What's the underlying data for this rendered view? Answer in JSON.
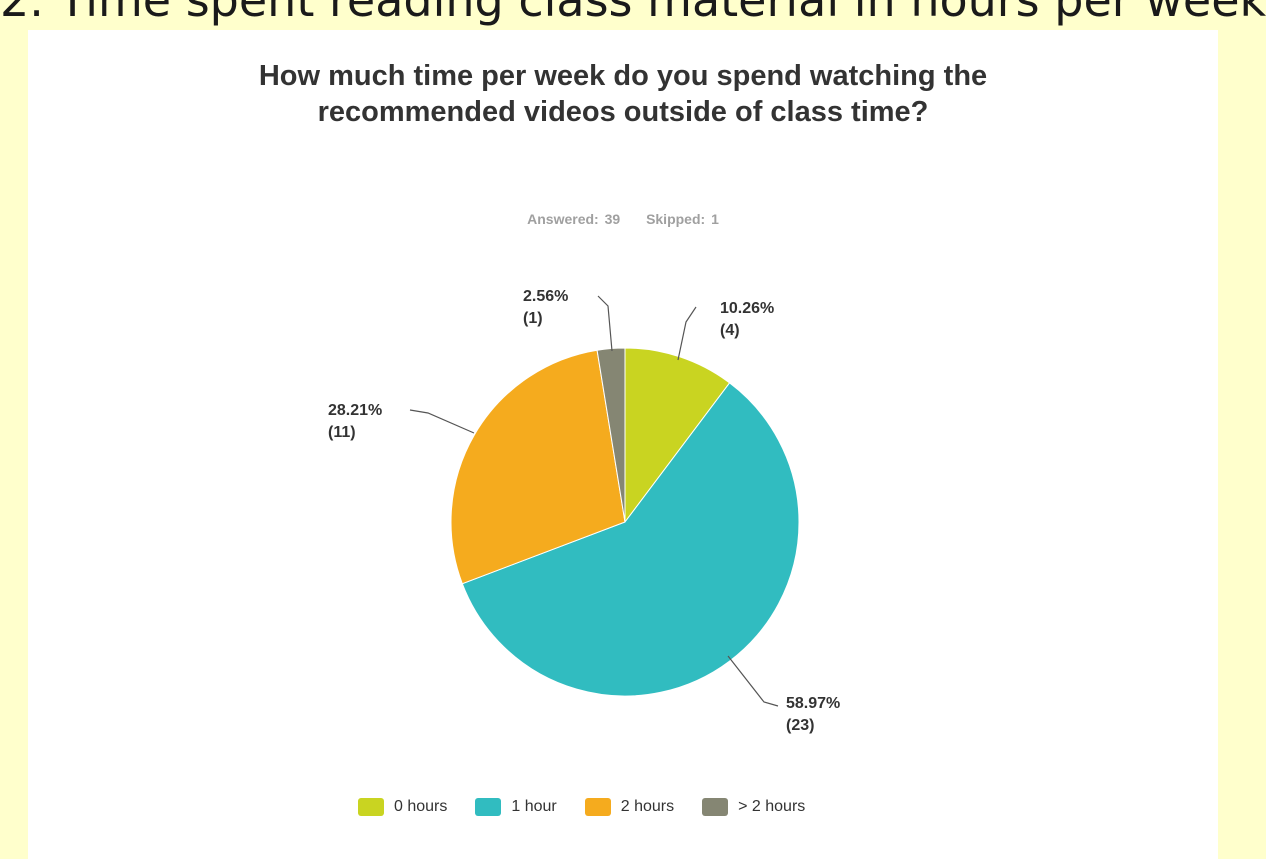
{
  "slide": {
    "heading": "2. Time spent reading class material in hours per week"
  },
  "chart_data": {
    "type": "pie",
    "title": "How much time per week do you spend watching the recommended videos outside of class time?",
    "answered": "Answered: 39",
    "skipped": "Skipped: 1",
    "categories": [
      "0 hours",
      "1 hour",
      "2 hours",
      "> 2 hours"
    ],
    "values": [
      4,
      23,
      11,
      1
    ],
    "percent_labels": [
      "10.26%",
      "58.97%",
      "28.21%",
      "2.56%"
    ],
    "count_labels": [
      "(4)",
      "(23)",
      "(11)",
      "(1)"
    ],
    "colors": [
      "#c9d421",
      "#31bcc0",
      "#f5ab1e",
      "#858673"
    ],
    "legend_position": "bottom"
  }
}
